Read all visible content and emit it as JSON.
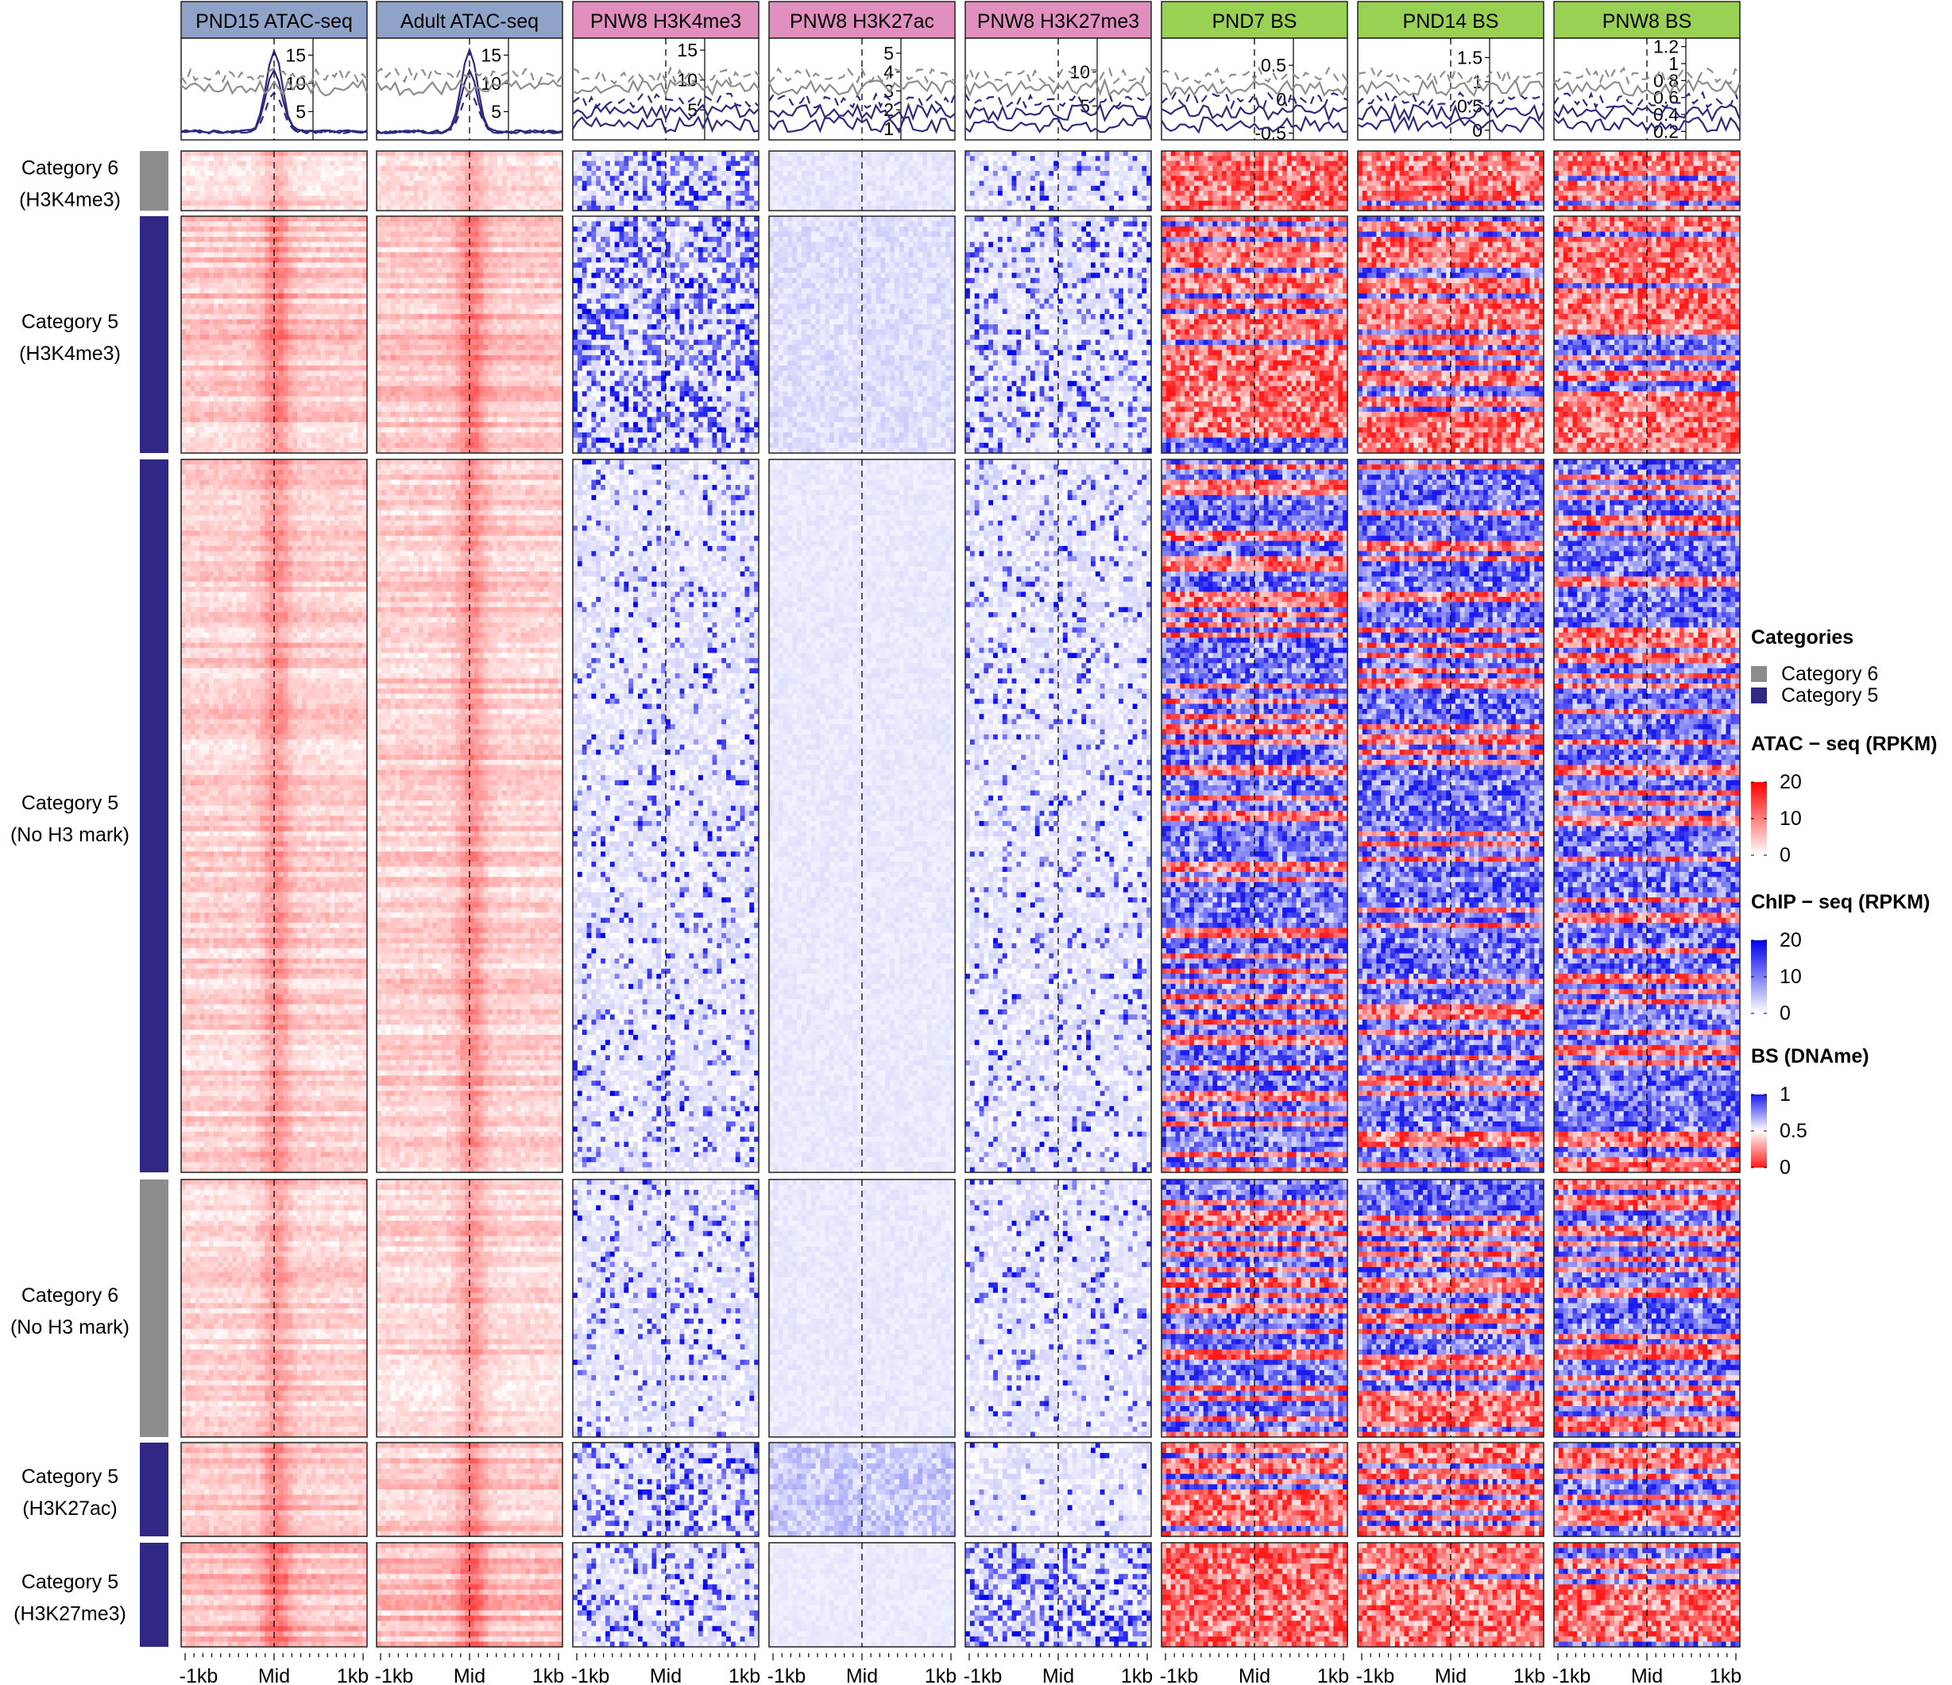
{
  "chart_data": {
    "type": "heatmap",
    "title": "",
    "columns": [
      {
        "name": "PND15 ATAC-seq",
        "assay": "ATAC",
        "header_color": "#8fa3c9",
        "profile_ticks": [
          5,
          10,
          15
        ],
        "profile_ylim": [
          0,
          18
        ]
      },
      {
        "name": "Adult ATAC-seq",
        "assay": "ATAC",
        "header_color": "#8fa3c9",
        "profile_ticks": [
          5,
          10,
          15
        ],
        "profile_ylim": [
          0,
          18
        ]
      },
      {
        "name": "PNW8 H3K4me3",
        "assay": "ChIP",
        "header_color": "#e08fbf",
        "profile_ticks": [
          5,
          10,
          15
        ],
        "profile_ylim": [
          0,
          17
        ]
      },
      {
        "name": "PNW8 H3K27ac",
        "assay": "ChIP",
        "header_color": "#e08fbf",
        "profile_ticks": [
          1,
          2,
          3,
          4,
          5
        ],
        "profile_ylim": [
          0.4,
          5.8
        ]
      },
      {
        "name": "PNW8 H3K27me3",
        "assay": "ChIP",
        "header_color": "#e08fbf",
        "profile_ticks": [
          5,
          10
        ],
        "profile_ylim": [
          0,
          15
        ]
      },
      {
        "name": "PND7 BS",
        "assay": "BS",
        "header_color": "#99d155",
        "profile_ticks": [
          -0.5,
          0,
          0.5
        ],
        "profile_ylim": [
          -0.6,
          0.9
        ]
      },
      {
        "name": "PND14 BS",
        "assay": "BS",
        "header_color": "#99d155",
        "profile_ticks": [
          0,
          0.5,
          1,
          1.5
        ],
        "profile_ylim": [
          -0.2,
          1.9
        ]
      },
      {
        "name": "PNW8 BS",
        "assay": "BS",
        "header_color": "#99d155",
        "profile_ticks": [
          0.2,
          0.4,
          0.6,
          0.8,
          1,
          1.2
        ],
        "profile_ylim": [
          0.1,
          1.3
        ]
      }
    ],
    "row_groups": [
      {
        "label1": "Category 6",
        "label2": "(H3K4me3)",
        "category": "Category 6",
        "n_rows": 12,
        "atac_level": 0.35,
        "k4_level": 0.55,
        "k27ac_level": 0.15,
        "k27me3_level": 0.25,
        "bs_level": 0.12
      },
      {
        "label1": "Category 5",
        "label2": "(H3K4me3)",
        "category": "Category 5",
        "n_rows": 46,
        "atac_level": 0.55,
        "k4_level": 0.65,
        "k27ac_level": 0.25,
        "k27me3_level": 0.35,
        "bs_level": 0.2
      },
      {
        "label1": "Category 5",
        "label2": "(No H3 mark)",
        "category": "Category 5",
        "n_rows": 140,
        "atac_level": 0.45,
        "k4_level": 0.18,
        "k27ac_level": 0.12,
        "k27me3_level": 0.2,
        "bs_level": 0.7
      },
      {
        "label1": "Category 6",
        "label2": "(No H3 mark)",
        "category": "Category 6",
        "n_rows": 50,
        "atac_level": 0.4,
        "k4_level": 0.2,
        "k27ac_level": 0.12,
        "k27me3_level": 0.15,
        "bs_level": 0.55
      },
      {
        "label1": "Category 5",
        "label2": "(H3K27ac)",
        "category": "Category 5",
        "n_rows": 18,
        "atac_level": 0.5,
        "k4_level": 0.45,
        "k27ac_level": 0.5,
        "k27me3_level": 0.08,
        "bs_level": 0.35
      },
      {
        "label1": "Category 5",
        "label2": "(H3K27me3)",
        "category": "Category 5",
        "n_rows": 20,
        "atac_level": 0.6,
        "k4_level": 0.35,
        "k27ac_level": 0.1,
        "k27me3_level": 0.55,
        "bs_level": 0.1
      }
    ],
    "x_ticks": [
      "-1kb",
      "Mid",
      "1kb"
    ],
    "legend": {
      "categories_title": "Categories",
      "categories": [
        {
          "name": "Category 6",
          "color": "#8c8c8c"
        },
        {
          "name": "Category 5",
          "color": "#312784"
        }
      ],
      "atac_title": "ATAC − seq (RPKM)",
      "atac_ticks": [
        20,
        10,
        0
      ],
      "chip_title": "ChIP − seq (RPKM)",
      "chip_ticks": [
        20,
        10,
        0
      ],
      "bs_title": "BS (DNAme)",
      "bs_ticks": [
        1,
        0.5,
        0
      ],
      "placement": "right"
    },
    "colors": {
      "category6": "#8c8c8c",
      "category5": "#312784",
      "atac_high": "#ff0000",
      "chip_high": "#0000ee",
      "bs_high": "#1a1aee",
      "bs_low": "#ff1a1a",
      "profile_line": "#2b2a7e",
      "profile_gray": "#8c8c8c"
    }
  }
}
